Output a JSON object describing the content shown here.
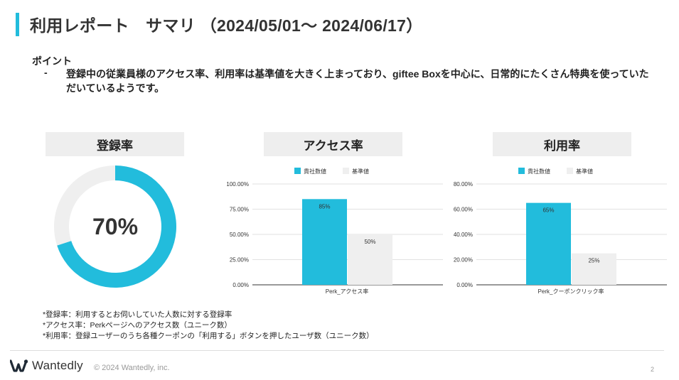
{
  "header": {
    "title": "利用レポート　サマリ （2024/05/01〜 2024/06/17）",
    "accent_color": "#22bcdc"
  },
  "point": {
    "heading": "ポイント",
    "dash": "-",
    "text": "登録中の従業員様のアクセス率、利用率は基準値を大きく上まっており、giftee Boxを中心に、日常的にたくさん特典を使っていただいているようです。"
  },
  "sections": {
    "registration": {
      "label": "登録率",
      "value_text": "70%"
    },
    "access": {
      "label": "アクセス率"
    },
    "usage": {
      "label": "利用率"
    }
  },
  "chart_data": [
    {
      "type": "pie",
      "title": "登録率",
      "slices": [
        {
          "value": 70,
          "color": "#22bcdc"
        },
        {
          "value": 30,
          "color": "#efefef"
        }
      ],
      "center_label": "70%"
    },
    {
      "type": "bar",
      "title": "アクセス率",
      "categories": [
        "Perk_アクセス率"
      ],
      "series": [
        {
          "name": "貴社数値",
          "values": [
            85
          ],
          "labels": [
            "85%"
          ],
          "color": "#22bcdc"
        },
        {
          "name": "基準値",
          "values": [
            50
          ],
          "labels": [
            "50%"
          ],
          "color": "#efefef"
        }
      ],
      "ylim": [
        0,
        100
      ],
      "yticks": [
        0,
        25,
        50,
        75,
        100
      ],
      "ytick_labels": [
        "0.00%",
        "25.00%",
        "50.00%",
        "75.00%",
        "100.00%"
      ],
      "grid": true,
      "legend": "top"
    },
    {
      "type": "bar",
      "title": "利用率",
      "categories": [
        "Perk_クーポンクリック率"
      ],
      "series": [
        {
          "name": "貴社数値",
          "values": [
            65
          ],
          "labels": [
            "65%"
          ],
          "color": "#22bcdc"
        },
        {
          "name": "基準値",
          "values": [
            25
          ],
          "labels": [
            "25%"
          ],
          "color": "#efefef"
        }
      ],
      "ylim": [
        0,
        80
      ],
      "yticks": [
        0,
        20,
        40,
        60,
        80
      ],
      "ytick_labels": [
        "0.00%",
        "20.00%",
        "40.00%",
        "60.00%",
        "80.00%"
      ],
      "grid": true,
      "legend": "top"
    }
  ],
  "notes": [
    "*登録率：利用するとお伺いしていた人数に対する登録率",
    "*アクセス率：Perkページへのアクセス数（ユニーク数）",
    "*利用率：登録ユーザーのうち各種クーポンの「利用する」ボタンを押したユーザ数（ユニーク数）"
  ],
  "footer": {
    "logo_text": "Wantedly",
    "logo_icon": "wantedly-w-icon",
    "copyright": "© 2024 Wantedly, inc.",
    "page_number": "2"
  }
}
